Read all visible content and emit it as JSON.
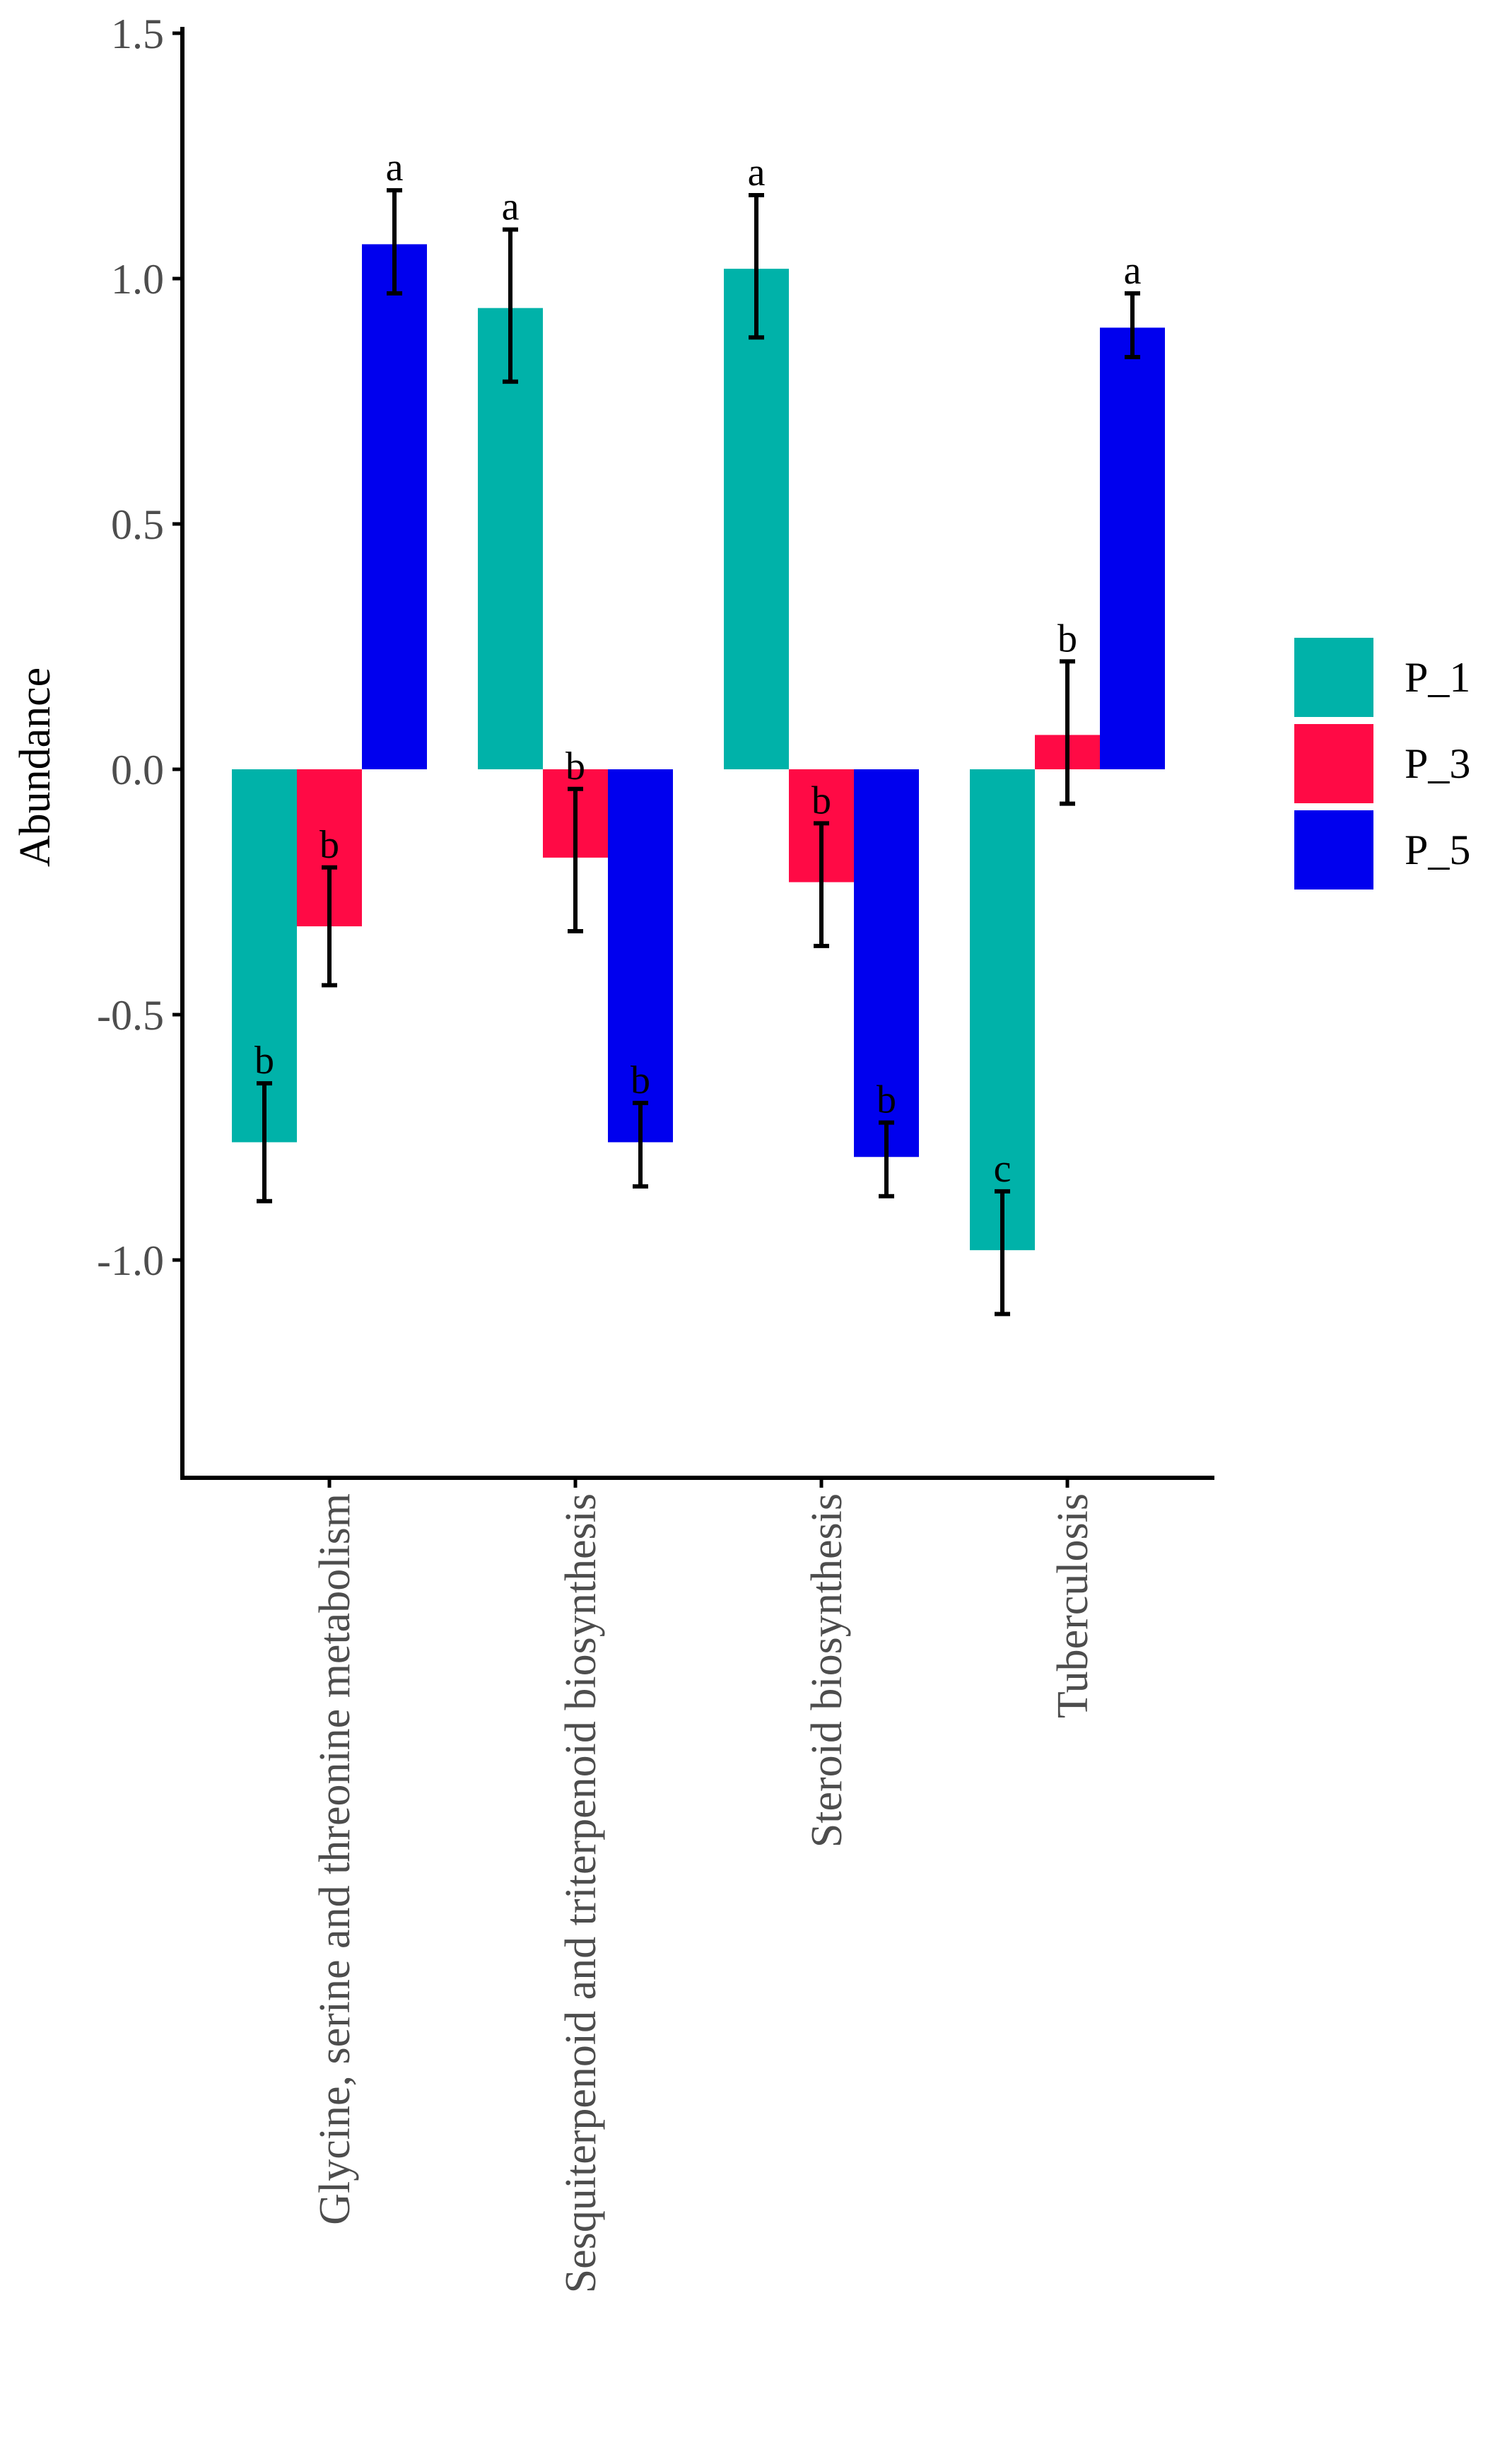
{
  "chart_data": {
    "type": "bar",
    "ylabel": "Abundance",
    "xlabel": "",
    "ylim": [
      -1.4,
      1.5
    ],
    "yticks": [
      1.5,
      1.0,
      0.5,
      0.0,
      -0.5,
      -1.0
    ],
    "ytick_labels": [
      "1.5",
      "1.0",
      "0.5",
      "0.0",
      "-0.5",
      "-1.0"
    ],
    "categories": [
      "Glycine, serine and threonine metabolism",
      "Sesquiterpenoid and triterpenoid biosynthesis",
      "Steroid biosynthesis",
      "Tuberculosis"
    ],
    "series": [
      {
        "name": "P_1",
        "color": "#00B2A9",
        "values": [
          -0.76,
          0.94,
          1.02,
          -0.98
        ],
        "error_low": [
          -0.88,
          0.79,
          0.88,
          -1.11
        ],
        "error_high": [
          -0.64,
          1.1,
          1.17,
          -0.86
        ],
        "sig": [
          "b",
          "a",
          "a",
          "c"
        ]
      },
      {
        "name": "P_3",
        "color": "#FF0A45",
        "values": [
          -0.32,
          -0.18,
          -0.23,
          0.07
        ],
        "error_low": [
          -0.44,
          -0.33,
          -0.36,
          -0.07
        ],
        "error_high": [
          -0.2,
          -0.04,
          -0.11,
          0.22
        ],
        "sig": [
          "b",
          "b",
          "b",
          "b"
        ]
      },
      {
        "name": "P_5",
        "color": "#0000EE",
        "values": [
          1.07,
          -0.76,
          -0.79,
          0.9
        ],
        "error_low": [
          0.97,
          -0.85,
          -0.87,
          0.84
        ],
        "error_high": [
          1.18,
          -0.68,
          -0.72,
          0.97
        ],
        "sig": [
          "a",
          "b",
          "b",
          "a"
        ]
      }
    ],
    "legend": {
      "position": "right",
      "entries": [
        "P_1",
        "P_3",
        "P_5"
      ]
    },
    "grid": false
  }
}
